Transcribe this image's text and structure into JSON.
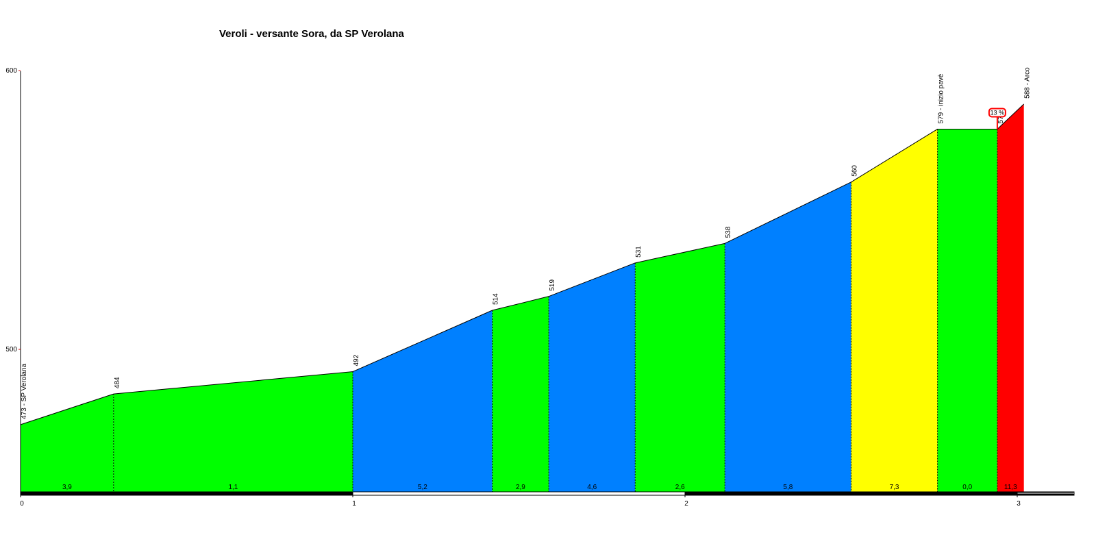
{
  "chart_data": {
    "type": "area",
    "title": "Veroli - versante Sora, da SP Verolana",
    "xlabel": "",
    "ylabel": "",
    "xlim": [
      0,
      3
    ],
    "ylim": [
      448,
      600
    ],
    "x_ticks": [
      "0",
      "1",
      "2",
      "3"
    ],
    "y_ticks": [
      "500",
      "600"
    ],
    "profile": [
      {
        "x": 0.0,
        "y": 473
      },
      {
        "x": 0.28,
        "y": 484
      },
      {
        "x": 1.0,
        "y": 492
      },
      {
        "x": 1.42,
        "y": 514
      },
      {
        "x": 1.59,
        "y": 519
      },
      {
        "x": 1.85,
        "y": 531
      },
      {
        "x": 2.12,
        "y": 538
      },
      {
        "x": 2.5,
        "y": 560
      },
      {
        "x": 2.76,
        "y": 579
      },
      {
        "x": 2.94,
        "y": 579
      },
      {
        "x": 3.02,
        "y": 588
      }
    ],
    "segments": [
      {
        "grade": "3,9",
        "color": "#00ff00"
      },
      {
        "grade": "1,1",
        "color": "#00ff00"
      },
      {
        "grade": "5,2",
        "color": "#0080ff"
      },
      {
        "grade": "2,9",
        "color": "#00ff00"
      },
      {
        "grade": "4,6",
        "color": "#0080ff"
      },
      {
        "grade": "2,6",
        "color": "#00ff00"
      },
      {
        "grade": "5,8",
        "color": "#0080ff"
      },
      {
        "grade": "7,3",
        "color": "#ffff00"
      },
      {
        "grade": "0,0",
        "color": "#00ff00"
      },
      {
        "grade": "11,3",
        "color": "#ff0000"
      }
    ],
    "point_labels": [
      "473 - SP Verolana",
      "484",
      "492",
      "514",
      "519",
      "531",
      "538",
      "560",
      "579 - inizio pavè",
      "579",
      "588 - Arco"
    ],
    "max_grade": "13 %",
    "max_grade_color": "#ff0000"
  }
}
